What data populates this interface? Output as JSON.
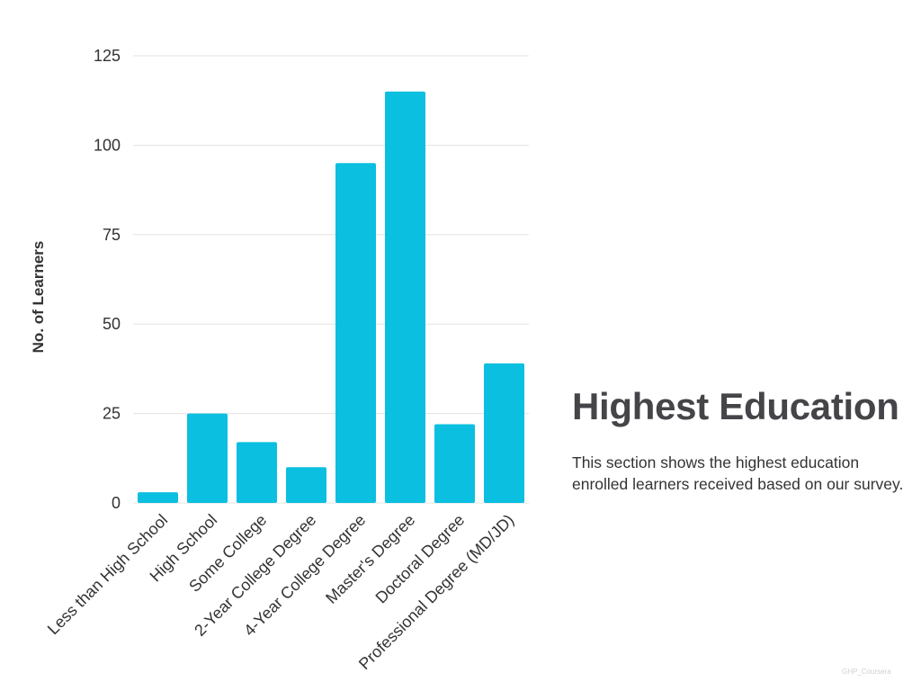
{
  "panel": {
    "title": "Highest Education",
    "description": "This section shows the highest education enrolled learners received based on our survey."
  },
  "footer": {
    "mark": "GHP_Coursera"
  },
  "chart_data": {
    "type": "bar",
    "title": "",
    "xlabel": "",
    "ylabel": "No. of Learners",
    "ylim": [
      0,
      125
    ],
    "yticks": [
      0,
      25,
      50,
      75,
      100,
      125
    ],
    "grid": true,
    "bar_color": "#0bbfe0",
    "categories": [
      "Less than High School",
      "High School",
      "Some College",
      "2-Year College Degree",
      "4-Year College Degree",
      "Master's Degree",
      "Doctoral Degree",
      "Professional Degree (MD/JD)"
    ],
    "values": [
      3,
      25,
      17,
      10,
      95,
      115,
      22,
      39
    ]
  }
}
